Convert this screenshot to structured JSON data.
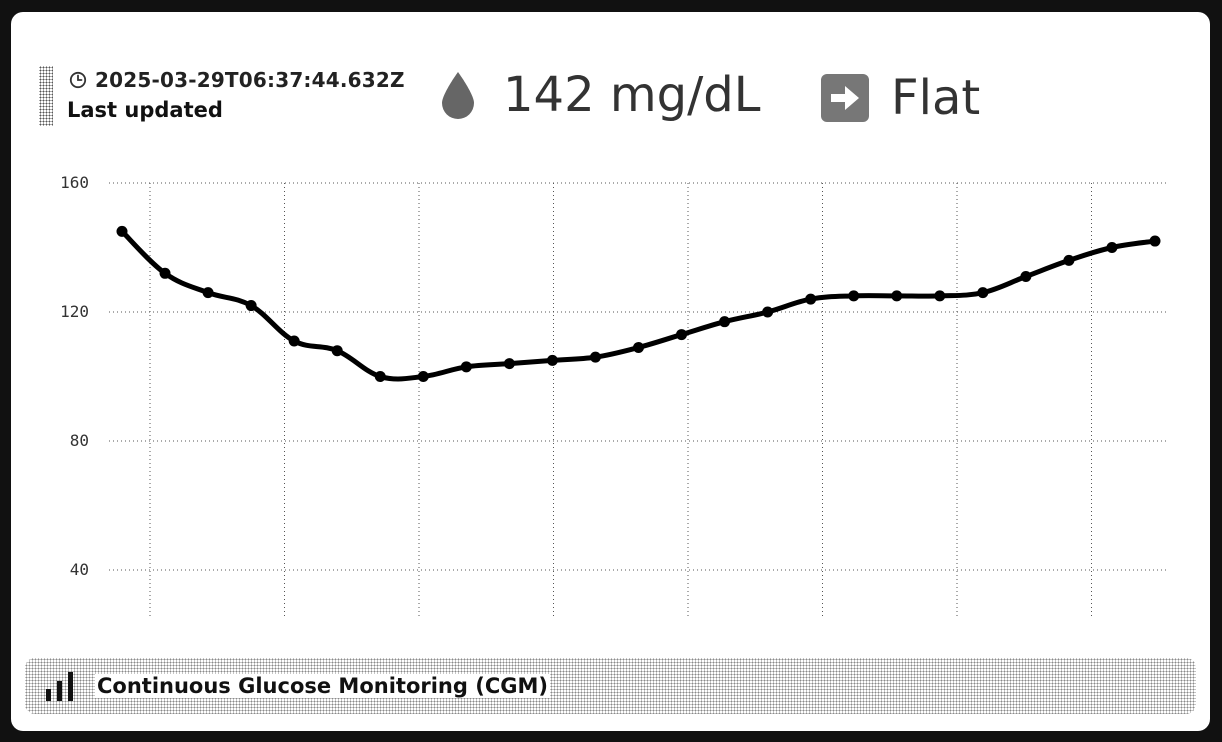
{
  "header": {
    "timestamp": "2025-03-29T06:37:44.632Z",
    "timestamp_label": "Last updated",
    "clock_icon": "clock-icon",
    "glucose_icon": "blood-drop-icon",
    "glucose_value": "142 mg/dL",
    "trend_icon": "arrow-right-icon",
    "trend_text": "Flat"
  },
  "footer": {
    "icon": "bar-chart-icon",
    "label": "Continuous Glucose Monitoring (CGM)"
  },
  "colors": {
    "line": "#000000",
    "grid": "#555555",
    "icon": "#666666",
    "text": "#333333"
  },
  "chart_data": {
    "type": "line",
    "title": "",
    "xlabel": "",
    "ylabel": "",
    "ylim": [
      30,
      160
    ],
    "yticks": [
      40,
      80,
      120,
      160
    ],
    "grid": true,
    "series": [
      {
        "values": [
          145,
          132,
          126,
          122,
          111,
          108,
          100,
          100,
          103,
          104,
          105,
          106,
          109,
          113,
          117,
          120,
          124,
          125,
          125,
          125,
          126,
          131,
          136,
          140,
          142
        ]
      }
    ]
  }
}
